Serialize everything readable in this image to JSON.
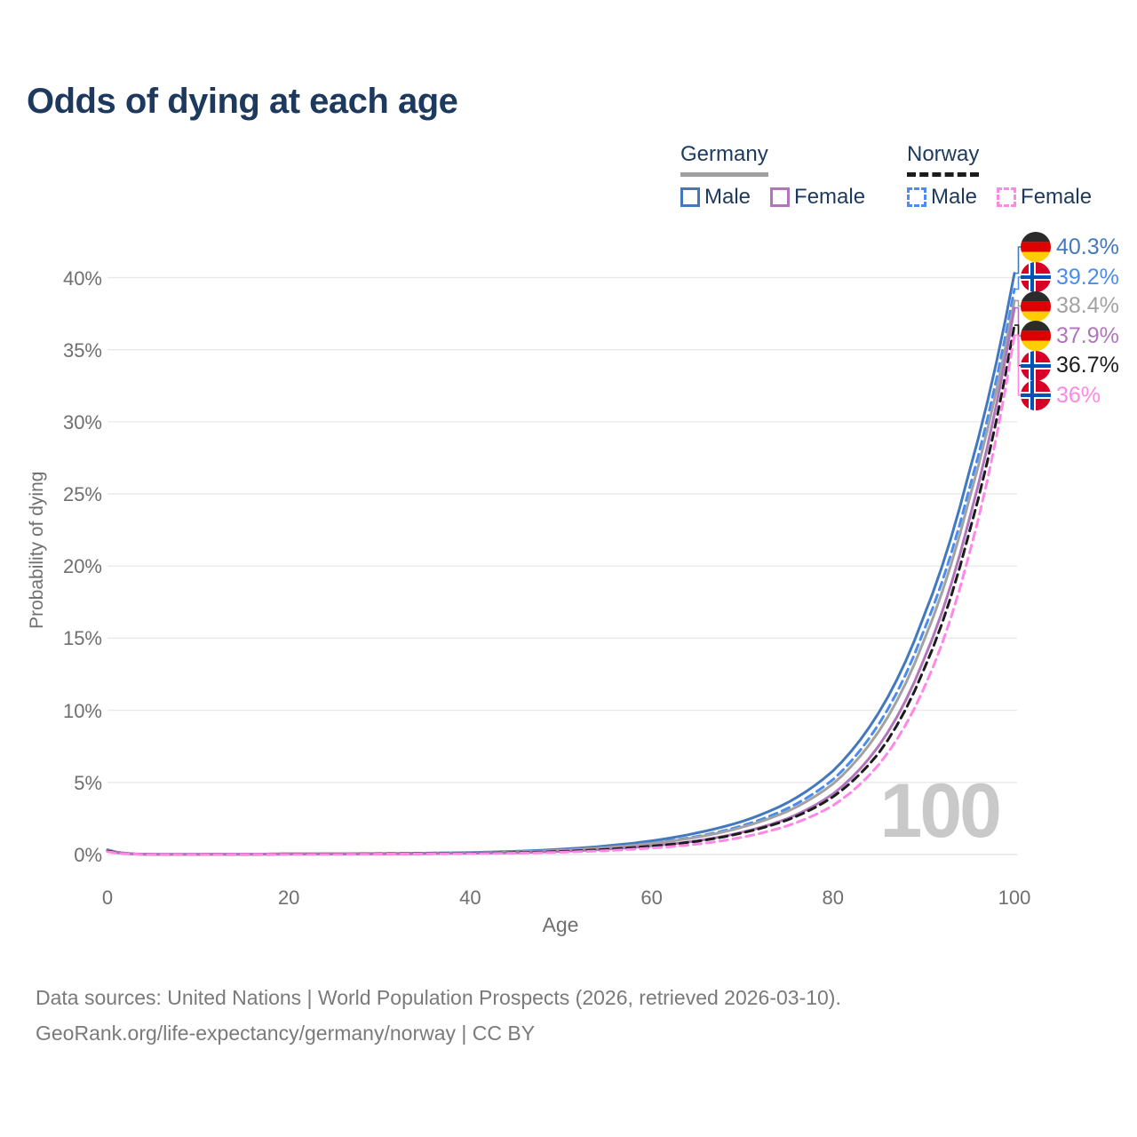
{
  "title": "Odds of dying at each age",
  "legend": {
    "groups": [
      {
        "country": "Germany",
        "line_style": "solid",
        "underline_color": "#a0a0a0",
        "items": [
          {
            "label": "Male",
            "color": "#4379bc"
          },
          {
            "label": "Female",
            "color": "#b075ba"
          }
        ]
      },
      {
        "country": "Norway",
        "line_style": "dashed",
        "underline_color": "#1c1c1c",
        "items": [
          {
            "label": "Male",
            "color": "#4a8cf1"
          },
          {
            "label": "Female",
            "color": "#ff87e6"
          }
        ]
      }
    ]
  },
  "chart_data": {
    "type": "line",
    "title": "Odds of dying at each age",
    "xlabel": "Age",
    "ylabel": "Probability of dying",
    "xlim": [
      0,
      100
    ],
    "ylim": [
      0,
      40
    ],
    "x_ticks": [
      "0",
      "20",
      "40",
      "60",
      "80",
      "100"
    ],
    "y_ticks": [
      "0%",
      "5%",
      "10%",
      "15%",
      "20%",
      "25%",
      "30%",
      "35%",
      "40%"
    ],
    "grid": "horizontal",
    "legend_position": "top-right",
    "watermark": "100",
    "ages": [
      0,
      5,
      10,
      15,
      20,
      25,
      30,
      35,
      40,
      45,
      50,
      55,
      60,
      65,
      70,
      75,
      80,
      85,
      90,
      95,
      100
    ],
    "series": [
      {
        "name": "Germany male",
        "country": "germany",
        "sex": "male",
        "color": "#4379bc",
        "dashed": false,
        "end_label": "40.3%",
        "end_value": 40.3,
        "values": [
          0.33,
          0.012,
          0.012,
          0.022,
          0.055,
          0.06,
          0.07,
          0.095,
          0.14,
          0.22,
          0.37,
          0.6,
          0.95,
          1.5,
          2.3,
          3.6,
          5.8,
          9.8,
          16.5,
          26.5,
          40.3
        ]
      },
      {
        "name": "Norway male",
        "country": "norway",
        "sex": "male",
        "color": "#4a8cf1",
        "dashed": true,
        "end_label": "39.2%",
        "end_value": 39.2,
        "values": [
          0.28,
          0.01,
          0.01,
          0.02,
          0.05,
          0.055,
          0.065,
          0.085,
          0.12,
          0.18,
          0.3,
          0.5,
          0.8,
          1.25,
          2.0,
          3.2,
          5.2,
          9.0,
          15.5,
          25.3,
          39.2
        ]
      },
      {
        "name": "Germany both sexes",
        "country": "germany",
        "sex": "both",
        "color": "#a2a2a2",
        "dashed": false,
        "end_label": "38.4%",
        "end_value": 38.4,
        "values": [
          0.3,
          0.01,
          0.01,
          0.017,
          0.04,
          0.045,
          0.055,
          0.075,
          0.11,
          0.17,
          0.29,
          0.48,
          0.77,
          1.2,
          1.9,
          3.0,
          4.9,
          8.5,
          14.8,
          24.6,
          38.4
        ]
      },
      {
        "name": "Germany female",
        "country": "germany",
        "sex": "female",
        "color": "#b075ba",
        "dashed": false,
        "end_label": "37.9%",
        "end_value": 37.9,
        "values": [
          0.27,
          0.009,
          0.009,
          0.013,
          0.022,
          0.028,
          0.04,
          0.055,
          0.085,
          0.13,
          0.22,
          0.37,
          0.6,
          0.95,
          1.55,
          2.5,
          4.2,
          7.5,
          13.5,
          23.2,
          37.9
        ]
      },
      {
        "name": "Norway both sexes",
        "country": "norway",
        "sex": "both",
        "color": "#1c1c1c",
        "dashed": true,
        "end_label": "36.7%",
        "end_value": 36.7,
        "values": [
          0.24,
          0.009,
          0.009,
          0.014,
          0.028,
          0.032,
          0.042,
          0.058,
          0.085,
          0.13,
          0.21,
          0.36,
          0.58,
          0.92,
          1.5,
          2.4,
          4.0,
          7.0,
          12.8,
          22.3,
          36.7
        ]
      },
      {
        "name": "Norway female",
        "country": "norway",
        "sex": "female",
        "color": "#ff87e6",
        "dashed": true,
        "end_label": "36%",
        "end_value": 36.0,
        "values": [
          0.2,
          0.008,
          0.008,
          0.011,
          0.016,
          0.02,
          0.028,
          0.04,
          0.06,
          0.095,
          0.16,
          0.27,
          0.45,
          0.72,
          1.2,
          2.0,
          3.4,
          6.2,
          11.5,
          20.8,
          36.0
        ]
      }
    ],
    "flag_colors": {
      "germany": {
        "black": "#2b2b2b",
        "red": "#dd0000",
        "gold": "#ffce00"
      },
      "norway": {
        "red": "#d80027",
        "white": "#ffffff",
        "blue": "#0052b4"
      }
    },
    "grid_color": "#e8e8e8"
  },
  "footer": {
    "line1": "Data sources: United Nations | World Population Prospects (2026, retrieved 2026-03-10).",
    "line2": "GeoRank.org/life-expectancy/germany/norway | CC BY"
  }
}
